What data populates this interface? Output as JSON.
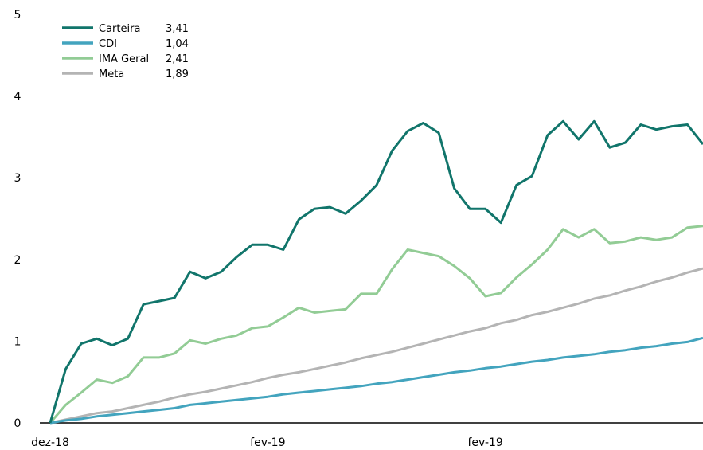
{
  "chart_data": {
    "type": "line",
    "title": "",
    "xlabel": "",
    "ylabel": "",
    "ylim": [
      0,
      5
    ],
    "yticks": [
      "0",
      "1",
      "2",
      "3",
      "4",
      "5"
    ],
    "xtick_labels": [
      {
        "label": "dez-18",
        "index": 0
      },
      {
        "label": "fev-19",
        "index": 14
      },
      {
        "label": "fev-19",
        "index": 28
      }
    ],
    "grid": false,
    "legend_position": "top-left",
    "series": [
      {
        "name": "Carteira",
        "legend_value": "3,41",
        "color": "#11756b",
        "values": [
          0,
          0.66,
          0.97,
          1.03,
          0.95,
          1.03,
          1.45,
          1.49,
          1.53,
          1.85,
          1.77,
          1.85,
          2.03,
          2.18,
          2.18,
          2.12,
          2.49,
          2.62,
          2.64,
          2.56,
          2.72,
          2.91,
          3.33,
          3.57,
          3.67,
          3.55,
          2.87,
          2.62,
          2.62,
          2.45,
          2.91,
          3.02,
          3.52,
          3.69,
          3.47,
          3.69,
          3.37,
          3.43,
          3.65,
          3.59,
          3.63,
          3.65,
          3.41
        ]
      },
      {
        "name": "CDI",
        "legend_value": "1,04",
        "color": "#43a4be",
        "values": [
          0,
          0.03,
          0.05,
          0.08,
          0.1,
          0.12,
          0.14,
          0.16,
          0.18,
          0.22,
          0.24,
          0.26,
          0.28,
          0.3,
          0.32,
          0.35,
          0.37,
          0.39,
          0.41,
          0.43,
          0.45,
          0.48,
          0.5,
          0.53,
          0.56,
          0.59,
          0.62,
          0.64,
          0.67,
          0.69,
          0.72,
          0.75,
          0.77,
          0.8,
          0.82,
          0.84,
          0.87,
          0.89,
          0.92,
          0.94,
          0.97,
          0.99,
          1.04
        ]
      },
      {
        "name": "IMA Geral",
        "legend_value": "2,41",
        "color": "#92cc95",
        "values": [
          0,
          0.22,
          0.37,
          0.53,
          0.49,
          0.57,
          0.8,
          0.8,
          0.85,
          1.01,
          0.97,
          1.03,
          1.07,
          1.16,
          1.18,
          1.29,
          1.41,
          1.35,
          1.37,
          1.39,
          1.58,
          1.58,
          1.88,
          2.12,
          2.08,
          2.04,
          1.92,
          1.77,
          1.55,
          1.59,
          1.78,
          1.94,
          2.12,
          2.37,
          2.27,
          2.37,
          2.2,
          2.22,
          2.27,
          2.24,
          2.27,
          2.39,
          2.41
        ]
      },
      {
        "name": "Meta",
        "legend_value": "1,89",
        "color": "#b4b4b4",
        "values": [
          0,
          0.04,
          0.08,
          0.12,
          0.14,
          0.18,
          0.22,
          0.26,
          0.31,
          0.35,
          0.38,
          0.42,
          0.46,
          0.5,
          0.55,
          0.59,
          0.62,
          0.66,
          0.7,
          0.74,
          0.79,
          0.83,
          0.87,
          0.92,
          0.97,
          1.02,
          1.07,
          1.12,
          1.16,
          1.22,
          1.26,
          1.32,
          1.36,
          1.41,
          1.46,
          1.52,
          1.56,
          1.62,
          1.67,
          1.73,
          1.78,
          1.84,
          1.89
        ]
      }
    ]
  }
}
